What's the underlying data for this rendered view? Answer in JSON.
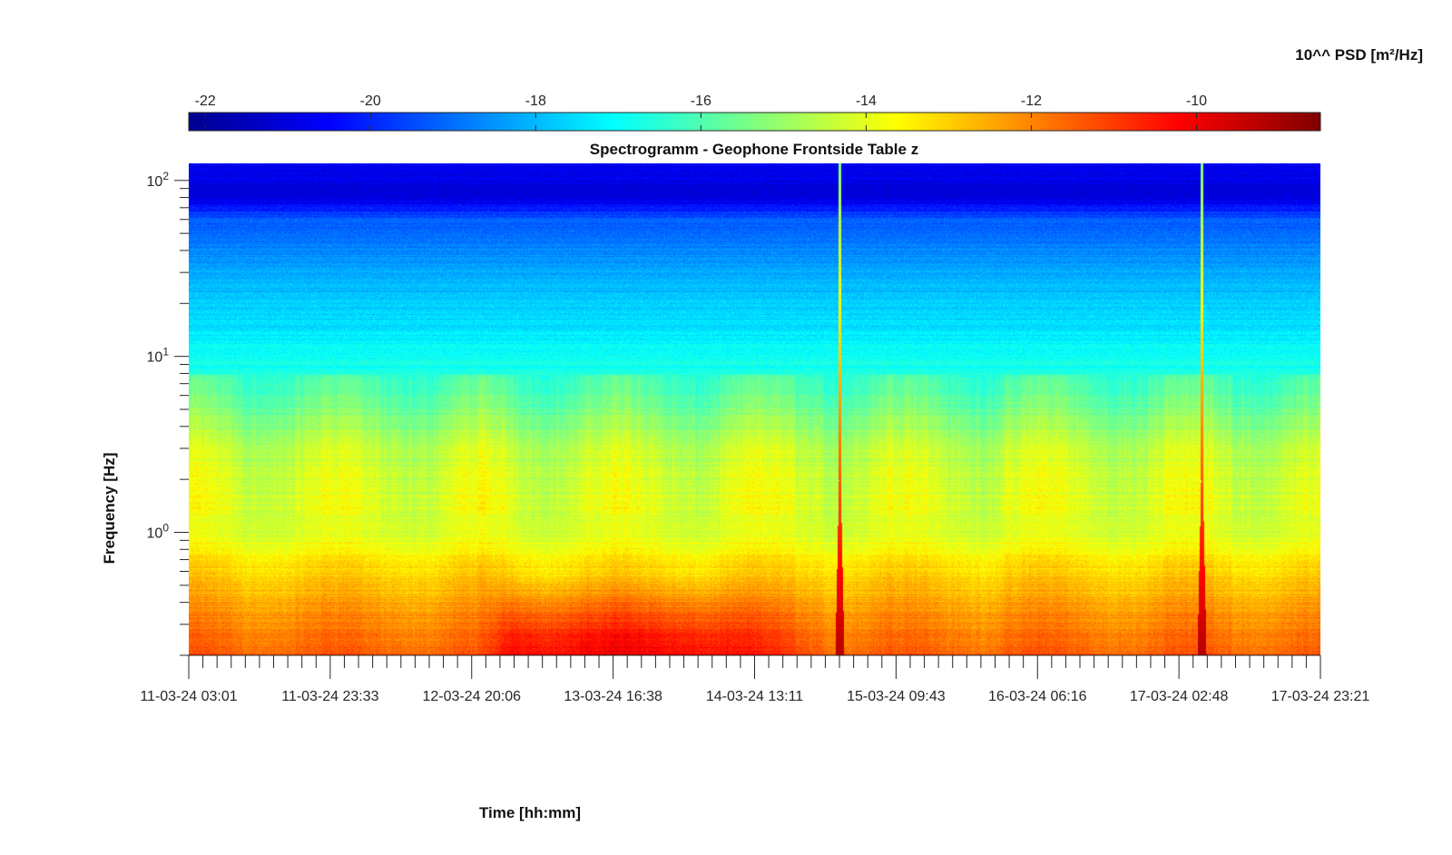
{
  "chart_data": {
    "type": "heatmap",
    "title": "Spectrogramm - Geophone Frontside Table z",
    "xlabel": "Time [hh:mm]",
    "ylabel": "Frequency [Hz]",
    "y_scale": "log",
    "ylim": [
      0.2,
      125
    ],
    "y_major_ticks": [
      {
        "value": 1,
        "base": "10",
        "exp": "0"
      },
      {
        "value": 10,
        "base": "10",
        "exp": "1"
      },
      {
        "value": 100,
        "base": "10",
        "exp": "2"
      }
    ],
    "x_tick_labels": [
      "11-03-24 03:01",
      "11-03-24 23:33",
      "12-03-24 20:06",
      "13-03-24 16:38",
      "14-03-24 13:11",
      "15-03-24 09:43",
      "16-03-24 06:16",
      "17-03-24 02:48",
      "17-03-24 23:21"
    ],
    "colorbar": {
      "label": "10^^ PSD [m²/Hz]",
      "colormap": "jet",
      "range": [
        -22.2,
        -8.5
      ],
      "ticks": [
        "-22",
        "-20",
        "-18",
        "-16",
        "-14",
        "-12",
        "-10"
      ],
      "tick_values": [
        -22,
        -20,
        -18,
        -16,
        -14,
        -12,
        -10
      ]
    },
    "events": [
      {
        "time_fraction": 0.575,
        "note": "broadband transient"
      },
      {
        "time_fraction": 0.895,
        "note": "broadband transient"
      }
    ],
    "log10_psd_profile_by_frequency": [
      {
        "hz": 0.2,
        "value": -11.6
      },
      {
        "hz": 0.35,
        "value": -12.4
      },
      {
        "hz": 0.6,
        "value": -13.3
      },
      {
        "hz": 1.0,
        "value": -14.3
      },
      {
        "hz": 3.0,
        "value": -14.8
      },
      {
        "hz": 6.0,
        "value": -16.2
      },
      {
        "hz": 12.0,
        "value": -17.2
      },
      {
        "hz": 30.0,
        "value": -18.2
      },
      {
        "hz": 60.0,
        "value": -19.3
      },
      {
        "hz": 80.0,
        "value": -21.0
      },
      {
        "hz": 125.0,
        "value": -20.6
      }
    ]
  }
}
